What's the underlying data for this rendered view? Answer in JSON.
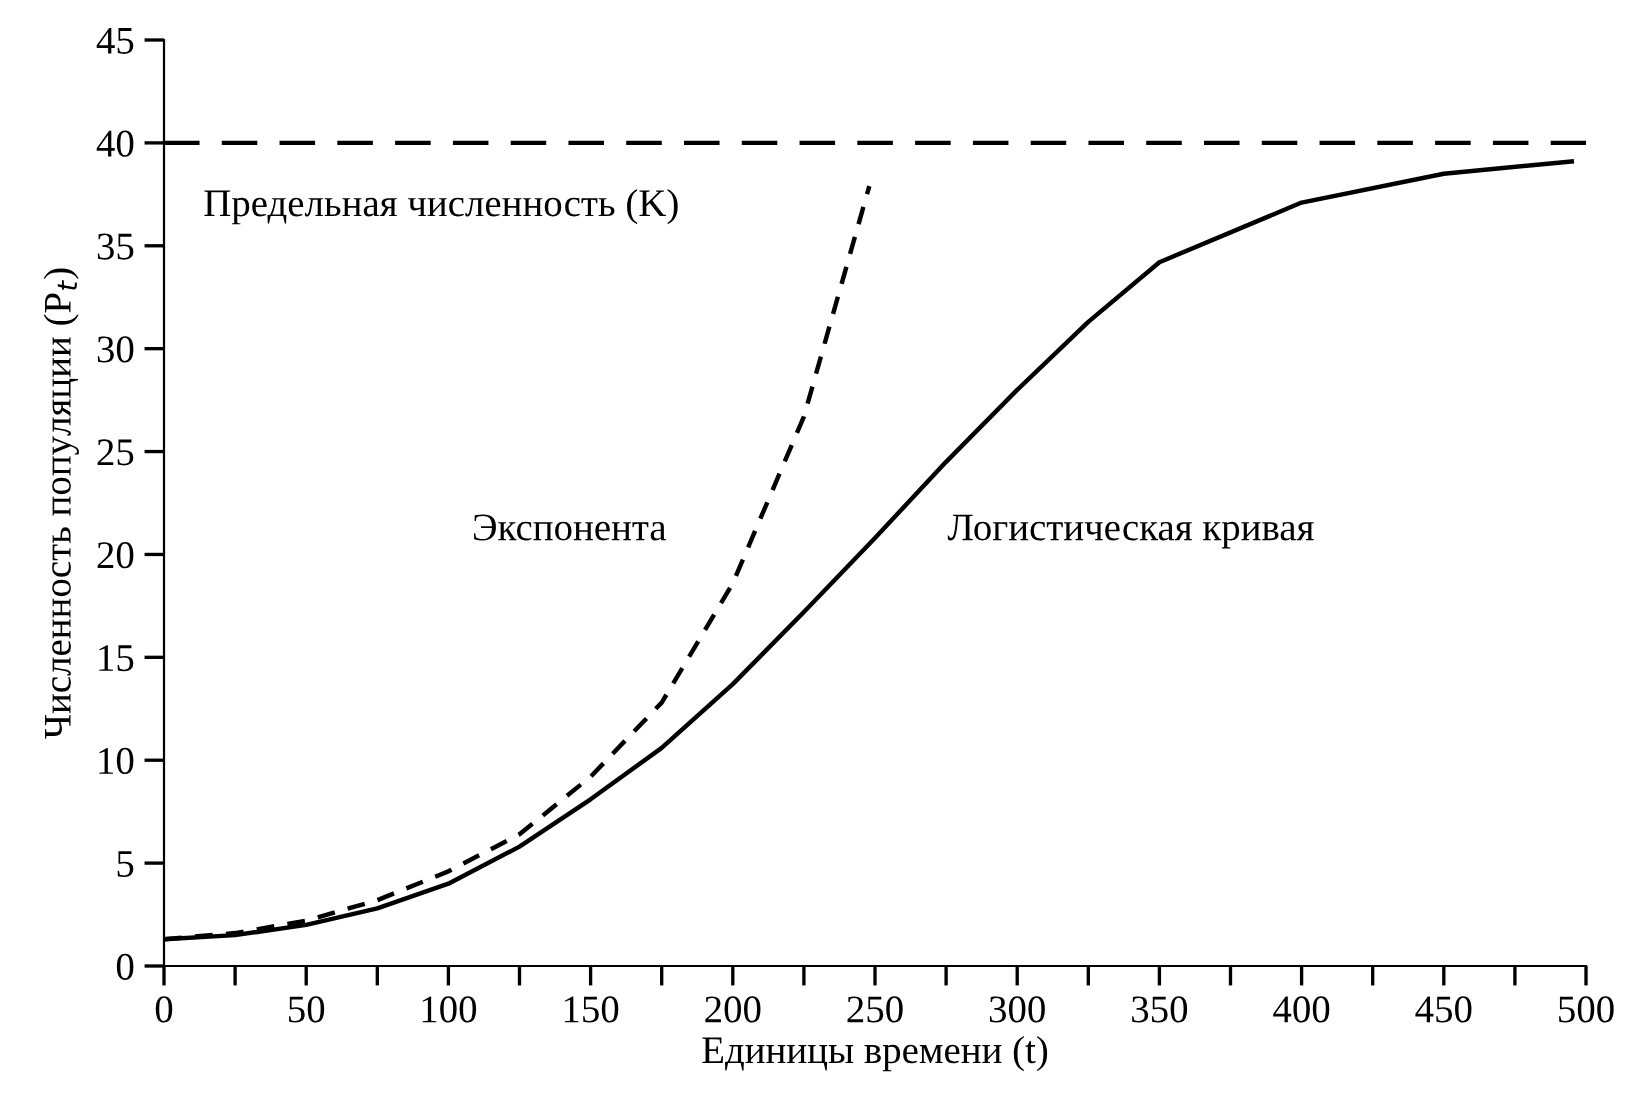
{
  "chart_data": {
    "type": "line",
    "xlabel": "Единицы времени (t)",
    "ylabel": "Численность популяции (P$_{t}$)",
    "xlim": [
      0,
      500
    ],
    "ylim": [
      0,
      45
    ],
    "xticks": [
      0,
      {
        "value": 25,
        "label": null
      },
      50,
      {
        "value": 75,
        "label": null
      },
      100,
      {
        "value": 125,
        "label": null
      },
      150,
      {
        "value": 175,
        "label": null
      },
      200,
      {
        "value": 225,
        "label": null
      },
      250,
      {
        "value": 275,
        "label": null
      },
      300,
      {
        "value": 325,
        "label": null
      },
      350,
      {
        "value": 375,
        "label": null
      },
      400,
      {
        "value": 425,
        "label": null
      },
      450,
      {
        "value": 475,
        "label": null
      },
      500
    ],
    "yticks": [
      0,
      5,
      10,
      15,
      20,
      25,
      30,
      35,
      40,
      45
    ],
    "grid": false,
    "legend": false,
    "marker": "none",
    "ref_lines": [
      {
        "axis": "y",
        "value": 40,
        "label": "Предельная численность (K)",
        "color": "#000000",
        "line_style": "dashed"
      }
    ],
    "series": [
      {
        "name": "Экспонента",
        "color": "#000000",
        "line_style": "dashed",
        "x": [
          0,
          25,
          50,
          75,
          100,
          125,
          150,
          175,
          200,
          225,
          248
        ],
        "values": [
          1.3,
          1.6,
          2.2,
          3.2,
          4.6,
          6.4,
          9.2,
          12.8,
          18.6,
          26.7,
          37.9
        ]
      },
      {
        "name": "Логистическая кривая",
        "color": "#000000",
        "line_style": "solid",
        "x": [
          0,
          25,
          50,
          75,
          100,
          125,
          150,
          175,
          200,
          225,
          250,
          275,
          300,
          325,
          350,
          400,
          450,
          495
        ],
        "values": [
          1.3,
          1.5,
          2.0,
          2.8,
          4.0,
          5.8,
          8.1,
          10.6,
          13.7,
          17.2,
          20.8,
          24.5,
          28.0,
          31.3,
          34.2,
          37.1,
          38.5,
          39.1
        ]
      }
    ]
  }
}
